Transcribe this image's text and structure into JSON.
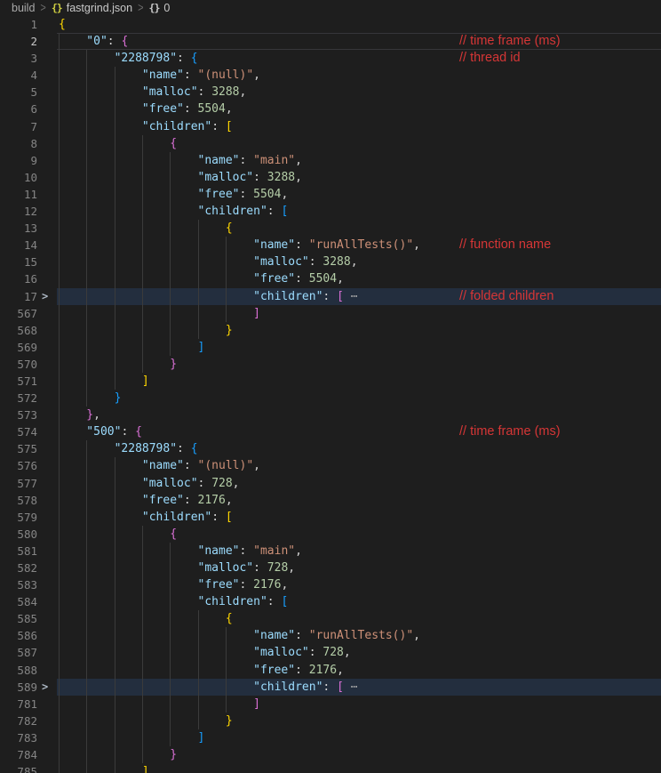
{
  "breadcrumb": {
    "separator": ">",
    "items": [
      {
        "label": "build",
        "icon": null,
        "icon_glyph": null,
        "icon_color": null,
        "bright": false
      },
      {
        "label": "fastgrind.json",
        "icon": "json-braces-icon",
        "icon_glyph": "{}",
        "icon_color": "#cbcb41",
        "bright": true
      },
      {
        "label": "0",
        "icon": "object-braces-icon",
        "icon_glyph": "{}",
        "icon_color": "#c8c8c8",
        "bright": true
      }
    ]
  },
  "colors": {
    "background": "#1e1e1e",
    "key": "#9cdcfe",
    "string": "#ce9178",
    "number": "#b5cea8",
    "punctuation": "#d4d4d4",
    "bracket_gold": "#ffd700",
    "bracket_pink": "#da70d6",
    "bracket_blue": "#179fff",
    "line_number": "#858585",
    "line_number_active": "#c6c6c6",
    "indent_guide": "#3b3b3b",
    "fold_highlight": "#232e3e",
    "annotation_red": "#d63636"
  },
  "editor": {
    "fold_arrow_glyph": ">",
    "fold_ellipsis_glyph": "⋯",
    "lines": [
      {
        "n": 1,
        "ind": 0,
        "t": [
          [
            "b1",
            "{"
          ]
        ]
      },
      {
        "n": 2,
        "ind": 1,
        "active": true,
        "ann": "// time frame (ms)",
        "t": [
          [
            "key",
            "\"0\""
          ],
          [
            "pun",
            ": "
          ],
          [
            "b2",
            "{"
          ]
        ]
      },
      {
        "n": 3,
        "ind": 2,
        "ann": "// thread id",
        "t": [
          [
            "key",
            "\"2288798\""
          ],
          [
            "pun",
            ": "
          ],
          [
            "b3",
            "{"
          ]
        ]
      },
      {
        "n": 4,
        "ind": 3,
        "t": [
          [
            "key",
            "\"name\""
          ],
          [
            "pun",
            ": "
          ],
          [
            "str",
            "\"(null)\""
          ],
          [
            "pun",
            ","
          ]
        ]
      },
      {
        "n": 5,
        "ind": 3,
        "t": [
          [
            "key",
            "\"malloc\""
          ],
          [
            "pun",
            ": "
          ],
          [
            "num",
            "3288"
          ],
          [
            "pun",
            ","
          ]
        ]
      },
      {
        "n": 6,
        "ind": 3,
        "t": [
          [
            "key",
            "\"free\""
          ],
          [
            "pun",
            ": "
          ],
          [
            "num",
            "5504"
          ],
          [
            "pun",
            ","
          ]
        ]
      },
      {
        "n": 7,
        "ind": 3,
        "t": [
          [
            "key",
            "\"children\""
          ],
          [
            "pun",
            ": "
          ],
          [
            "b1",
            "["
          ]
        ]
      },
      {
        "n": 8,
        "ind": 4,
        "t": [
          [
            "b2",
            "{"
          ]
        ]
      },
      {
        "n": 9,
        "ind": 5,
        "t": [
          [
            "key",
            "\"name\""
          ],
          [
            "pun",
            ": "
          ],
          [
            "str",
            "\"main\""
          ],
          [
            "pun",
            ","
          ]
        ]
      },
      {
        "n": 10,
        "ind": 5,
        "t": [
          [
            "key",
            "\"malloc\""
          ],
          [
            "pun",
            ": "
          ],
          [
            "num",
            "3288"
          ],
          [
            "pun",
            ","
          ]
        ]
      },
      {
        "n": 11,
        "ind": 5,
        "t": [
          [
            "key",
            "\"free\""
          ],
          [
            "pun",
            ": "
          ],
          [
            "num",
            "5504"
          ],
          [
            "pun",
            ","
          ]
        ]
      },
      {
        "n": 12,
        "ind": 5,
        "t": [
          [
            "key",
            "\"children\""
          ],
          [
            "pun",
            ": "
          ],
          [
            "b3",
            "["
          ]
        ]
      },
      {
        "n": 13,
        "ind": 6,
        "t": [
          [
            "b1",
            "{"
          ]
        ]
      },
      {
        "n": 14,
        "ind": 7,
        "ann": "// function name",
        "t": [
          [
            "key",
            "\"name\""
          ],
          [
            "pun",
            ": "
          ],
          [
            "str",
            "\"runAllTests()\""
          ],
          [
            "pun",
            ","
          ]
        ]
      },
      {
        "n": 15,
        "ind": 7,
        "t": [
          [
            "key",
            "\"malloc\""
          ],
          [
            "pun",
            ": "
          ],
          [
            "num",
            "3288"
          ],
          [
            "pun",
            ","
          ]
        ]
      },
      {
        "n": 16,
        "ind": 7,
        "t": [
          [
            "key",
            "\"free\""
          ],
          [
            "pun",
            ": "
          ],
          [
            "num",
            "5504"
          ],
          [
            "pun",
            ","
          ]
        ]
      },
      {
        "n": 17,
        "ind": 7,
        "folded": true,
        "ann": "// folded children",
        "t": [
          [
            "key",
            "\"children\""
          ],
          [
            "pun",
            ": "
          ],
          [
            "b2",
            "["
          ],
          [
            "el",
            " ⋯"
          ]
        ]
      },
      {
        "n": 567,
        "ind": 7,
        "t": [
          [
            "b2",
            "]"
          ]
        ]
      },
      {
        "n": 568,
        "ind": 6,
        "t": [
          [
            "b1",
            "}"
          ]
        ]
      },
      {
        "n": 569,
        "ind": 5,
        "t": [
          [
            "b3",
            "]"
          ]
        ]
      },
      {
        "n": 570,
        "ind": 4,
        "t": [
          [
            "b2",
            "}"
          ]
        ]
      },
      {
        "n": 571,
        "ind": 3,
        "t": [
          [
            "b1",
            "]"
          ]
        ]
      },
      {
        "n": 572,
        "ind": 2,
        "t": [
          [
            "b3",
            "}"
          ]
        ]
      },
      {
        "n": 573,
        "ind": 1,
        "t": [
          [
            "b2",
            "}"
          ],
          [
            "pun",
            ","
          ]
        ]
      },
      {
        "n": 574,
        "ind": 1,
        "ann": "// time frame (ms)",
        "t": [
          [
            "key",
            "\"500\""
          ],
          [
            "pun",
            ": "
          ],
          [
            "b2",
            "{"
          ]
        ]
      },
      {
        "n": 575,
        "ind": 2,
        "t": [
          [
            "key",
            "\"2288798\""
          ],
          [
            "pun",
            ": "
          ],
          [
            "b3",
            "{"
          ]
        ]
      },
      {
        "n": 576,
        "ind": 3,
        "t": [
          [
            "key",
            "\"name\""
          ],
          [
            "pun",
            ": "
          ],
          [
            "str",
            "\"(null)\""
          ],
          [
            "pun",
            ","
          ]
        ]
      },
      {
        "n": 577,
        "ind": 3,
        "t": [
          [
            "key",
            "\"malloc\""
          ],
          [
            "pun",
            ": "
          ],
          [
            "num",
            "728"
          ],
          [
            "pun",
            ","
          ]
        ]
      },
      {
        "n": 578,
        "ind": 3,
        "t": [
          [
            "key",
            "\"free\""
          ],
          [
            "pun",
            ": "
          ],
          [
            "num",
            "2176"
          ],
          [
            "pun",
            ","
          ]
        ]
      },
      {
        "n": 579,
        "ind": 3,
        "t": [
          [
            "key",
            "\"children\""
          ],
          [
            "pun",
            ": "
          ],
          [
            "b1",
            "["
          ]
        ]
      },
      {
        "n": 580,
        "ind": 4,
        "t": [
          [
            "b2",
            "{"
          ]
        ]
      },
      {
        "n": 581,
        "ind": 5,
        "t": [
          [
            "key",
            "\"name\""
          ],
          [
            "pun",
            ": "
          ],
          [
            "str",
            "\"main\""
          ],
          [
            "pun",
            ","
          ]
        ]
      },
      {
        "n": 582,
        "ind": 5,
        "t": [
          [
            "key",
            "\"malloc\""
          ],
          [
            "pun",
            ": "
          ],
          [
            "num",
            "728"
          ],
          [
            "pun",
            ","
          ]
        ]
      },
      {
        "n": 583,
        "ind": 5,
        "t": [
          [
            "key",
            "\"free\""
          ],
          [
            "pun",
            ": "
          ],
          [
            "num",
            "2176"
          ],
          [
            "pun",
            ","
          ]
        ]
      },
      {
        "n": 584,
        "ind": 5,
        "t": [
          [
            "key",
            "\"children\""
          ],
          [
            "pun",
            ": "
          ],
          [
            "b3",
            "["
          ]
        ]
      },
      {
        "n": 585,
        "ind": 6,
        "t": [
          [
            "b1",
            "{"
          ]
        ]
      },
      {
        "n": 586,
        "ind": 7,
        "t": [
          [
            "key",
            "\"name\""
          ],
          [
            "pun",
            ": "
          ],
          [
            "str",
            "\"runAllTests()\""
          ],
          [
            "pun",
            ","
          ]
        ]
      },
      {
        "n": 587,
        "ind": 7,
        "t": [
          [
            "key",
            "\"malloc\""
          ],
          [
            "pun",
            ": "
          ],
          [
            "num",
            "728"
          ],
          [
            "pun",
            ","
          ]
        ]
      },
      {
        "n": 588,
        "ind": 7,
        "t": [
          [
            "key",
            "\"free\""
          ],
          [
            "pun",
            ": "
          ],
          [
            "num",
            "2176"
          ],
          [
            "pun",
            ","
          ]
        ]
      },
      {
        "n": 589,
        "ind": 7,
        "folded": true,
        "t": [
          [
            "key",
            "\"children\""
          ],
          [
            "pun",
            ": "
          ],
          [
            "b2",
            "["
          ],
          [
            "el",
            " ⋯"
          ]
        ]
      },
      {
        "n": 781,
        "ind": 7,
        "t": [
          [
            "b2",
            "]"
          ]
        ]
      },
      {
        "n": 782,
        "ind": 6,
        "t": [
          [
            "b1",
            "}"
          ]
        ]
      },
      {
        "n": 783,
        "ind": 5,
        "t": [
          [
            "b3",
            "]"
          ]
        ]
      },
      {
        "n": 784,
        "ind": 4,
        "t": [
          [
            "b2",
            "}"
          ]
        ]
      },
      {
        "n": 785,
        "ind": 3,
        "t": [
          [
            "b1",
            "]"
          ]
        ]
      }
    ]
  }
}
